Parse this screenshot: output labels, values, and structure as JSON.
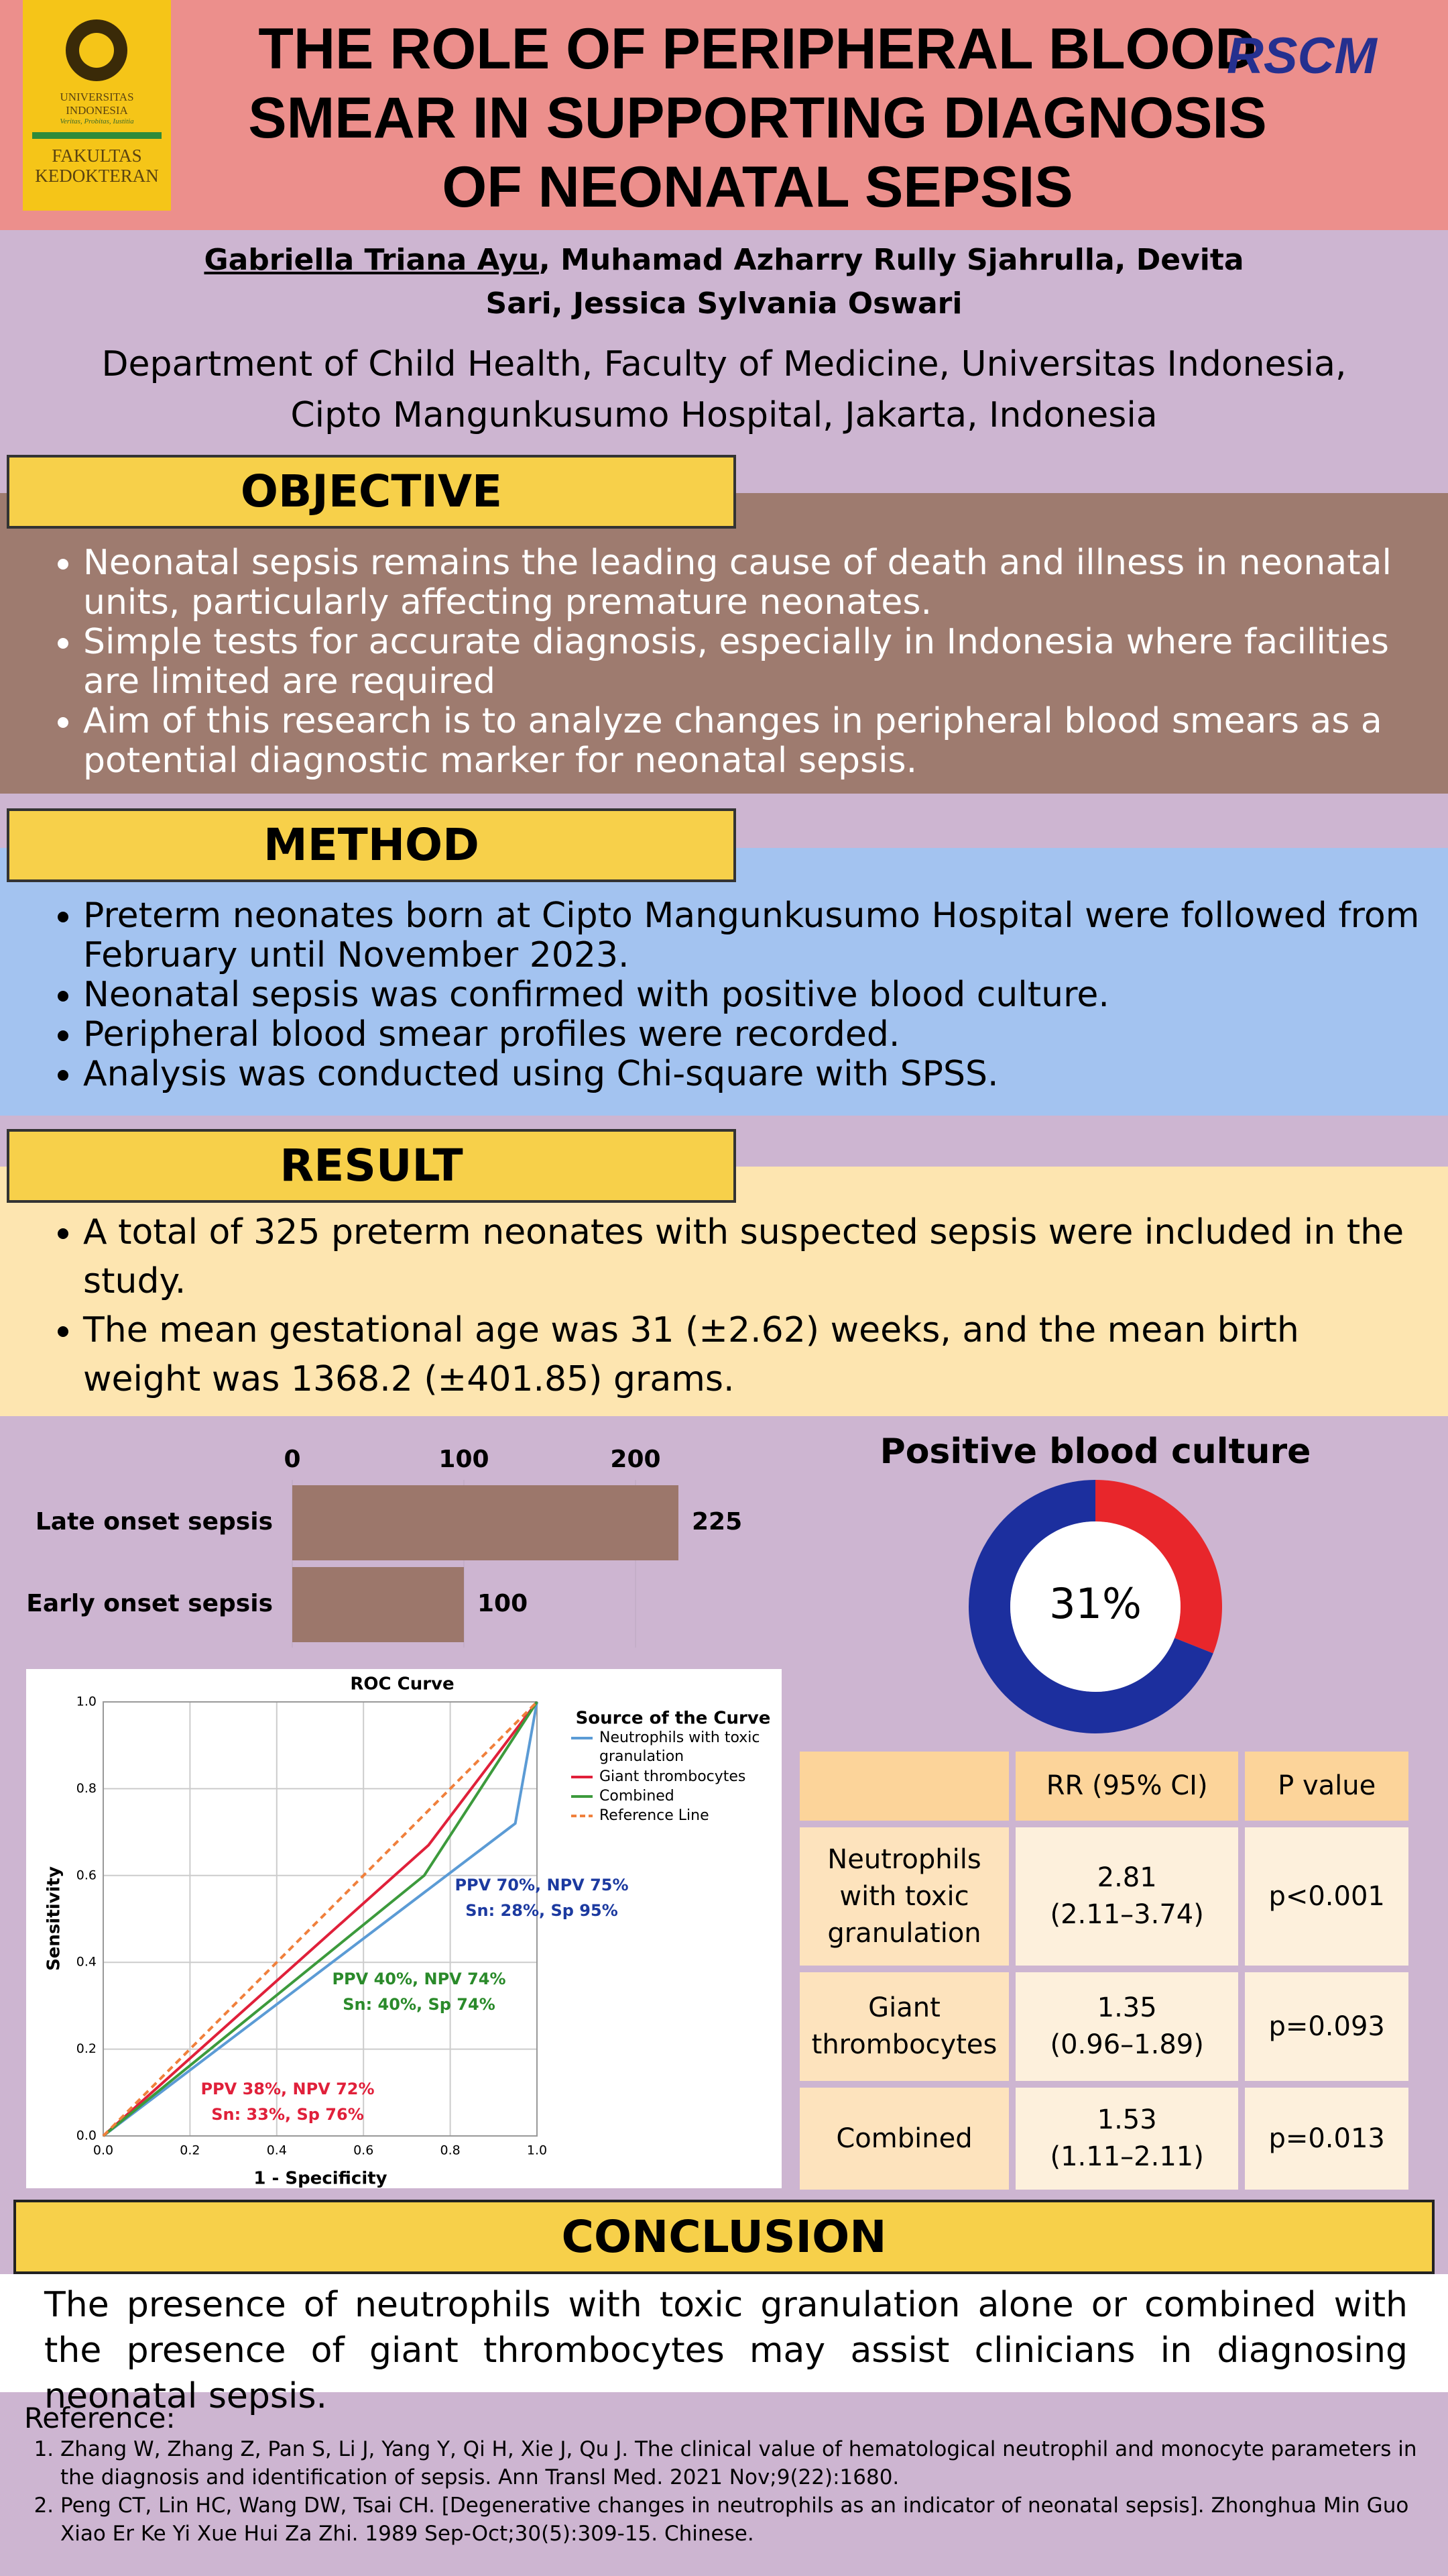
{
  "header": {
    "title": "THE ROLE OF PERIPHERAL BLOOD SMEAR IN SUPPORTING DIAGNOSIS OF NEONATAL SEPSIS",
    "logo_left": {
      "university": "UNIVERSITAS",
      "country": "INDONESIA",
      "motto": "Veritas, Probitas, Iustitia",
      "faculty": "FAKULTAS",
      "faculty2": "KEDOKTERAN"
    },
    "logo_right": "RSCM"
  },
  "authors": {
    "presenter": "Gabriella Triana Ayu",
    "others": ", Muhamad Azharry Rully Sjahrulla, Devita Sari, Jessica Sylvania Oswari",
    "affiliation": "Department of Child Health, Faculty of Medicine, Universitas Indonesia, Cipto Mangunkusumo Hospital, Jakarta, Indonesia"
  },
  "objective": {
    "heading": "OBJECTIVE",
    "items": [
      "Neonatal sepsis remains the leading cause of death and illness in neonatal units, particularly affecting premature neonates.",
      "Simple tests for accurate diagnosis, especially in Indonesia where facilities are limited are required",
      "Aim of this research is to analyze changes in peripheral blood smears as a potential diagnostic marker for neonatal sepsis."
    ]
  },
  "method": {
    "heading": "METHOD",
    "items": [
      "Preterm neonates born at Cipto Mangunkusumo Hospital were followed from February until November 2023.",
      "Neonatal sepsis was confirmed with positive blood culture.",
      "Peripheral blood smear profiles were recorded.",
      "Analysis was conducted using Chi-square with SPSS."
    ]
  },
  "result": {
    "heading": "RESULT",
    "items": [
      "A total of 325 preterm neonates with suspected sepsis were included in the study.",
      "The mean gestational age was 31 (±2.62) weeks, and the mean birth weight was 1368.2 (±401.85) grams."
    ]
  },
  "chart_data": [
    {
      "type": "hbar",
      "categories": [
        "Late onset sepsis",
        "Early onset sepsis"
      ],
      "values": [
        225,
        100
      ],
      "color": "#9c776b",
      "xlim": [
        0,
        225
      ],
      "xticks": [
        0,
        100,
        200
      ],
      "grid": true
    },
    {
      "type": "donut",
      "title": "Positive blood culture",
      "values": [
        31,
        69
      ],
      "colors": [
        "#e8262b",
        "#1c2f9e"
      ],
      "center_label": "31%"
    },
    {
      "type": "line",
      "title": "ROC Curve",
      "x_label": "1 - Specificity",
      "y_label": "Sensitivity",
      "legend_title": "Source of the Curve",
      "xlim": [
        0,
        1
      ],
      "ylim": [
        0,
        1
      ],
      "xticks": [
        {
          "value": 0,
          "label": "0.0"
        },
        {
          "value": 0.2,
          "label": "0.2"
        },
        {
          "value": 0.4,
          "label": "0.4"
        },
        {
          "value": 0.6,
          "label": "0.6"
        },
        {
          "value": 0.8,
          "label": "0.8"
        },
        {
          "value": 1,
          "label": "1.0"
        }
      ],
      "yticks": [
        {
          "value": 0,
          "label": "0.0"
        },
        {
          "value": 0.2,
          "label": "0.2"
        },
        {
          "value": 0.4,
          "label": "0.4"
        },
        {
          "value": 0.6,
          "label": "0.6"
        },
        {
          "value": 0.8,
          "label": "0.8"
        },
        {
          "value": 1,
          "label": "1.0"
        }
      ],
      "grid": true,
      "series": [
        {
          "name": "Neutrophils with toxic granulation",
          "color": "#5b9bd5",
          "x": [
            0,
            0.95,
            1
          ],
          "values": [
            0,
            0.72,
            1
          ]
        },
        {
          "name": "Giant thrombocytes",
          "color": "#e0203a",
          "x": [
            0,
            0.75,
            1
          ],
          "values": [
            0,
            0.67,
            1
          ]
        },
        {
          "name": "Combined",
          "color": "#3c9a3c",
          "x": [
            0,
            0.74,
            1
          ],
          "values": [
            0,
            0.6,
            1
          ]
        },
        {
          "name": "Reference Line",
          "color": "#f0803c",
          "dashed": true,
          "x": [
            0,
            1
          ],
          "values": [
            0,
            1
          ]
        }
      ],
      "annotations": [
        {
          "color": "#1c3aa0",
          "lines": [
            "PPV 70%, NPV 75%",
            "Sn: 28%, Sp 95%"
          ]
        },
        {
          "color": "#2a8a2a",
          "lines": [
            "PPV 40%, NPV 74%",
            "Sn: 40%, Sp 74%"
          ]
        },
        {
          "color": "#e0203a",
          "lines": [
            "PPV 38%, NPV 72%",
            "Sn: 33%, Sp 76%"
          ]
        }
      ]
    }
  ],
  "table": {
    "columns": [
      "RR (95% CI)",
      "P value"
    ],
    "rows": [
      {
        "label": "Neutrophils with toxic granulation",
        "rr": "2.81",
        "ci": "(2.11–3.74)",
        "p": "p<0.001"
      },
      {
        "label": "Giant thrombocytes",
        "rr": "1.35",
        "ci": "(0.96–1.89)",
        "p": "p=0.093"
      },
      {
        "label": "Combined",
        "rr": "1.53",
        "ci": "(1.11–2.11)",
        "p": "p=0.013"
      }
    ]
  },
  "conclusion": {
    "heading": "CONCLUSION",
    "text": "The presence of neutrophils with toxic granulation alone or combined with the presence of giant thrombocytes may assist clinicians in diagnosing neonatal sepsis."
  },
  "references": {
    "heading": "Reference:",
    "items": [
      "Zhang W, Zhang Z, Pan S, Li J, Yang Y, Qi H, Xie J, Qu J. The clinical value of hematological neutrophil and monocyte parameters in the diagnosis and identification of sepsis. Ann Transl Med. 2021 Nov;9(22):1680.",
      "Peng CT, Lin HC, Wang DW, Tsai CH. [Degenerative changes in neutrophils as an indicator of neonatal sepsis]. Zhonghua Min Guo Xiao Er Ke Yi Xue Hui Za Zhi. 1989 Sep-Oct;30(5):309-15. Chinese."
    ]
  }
}
